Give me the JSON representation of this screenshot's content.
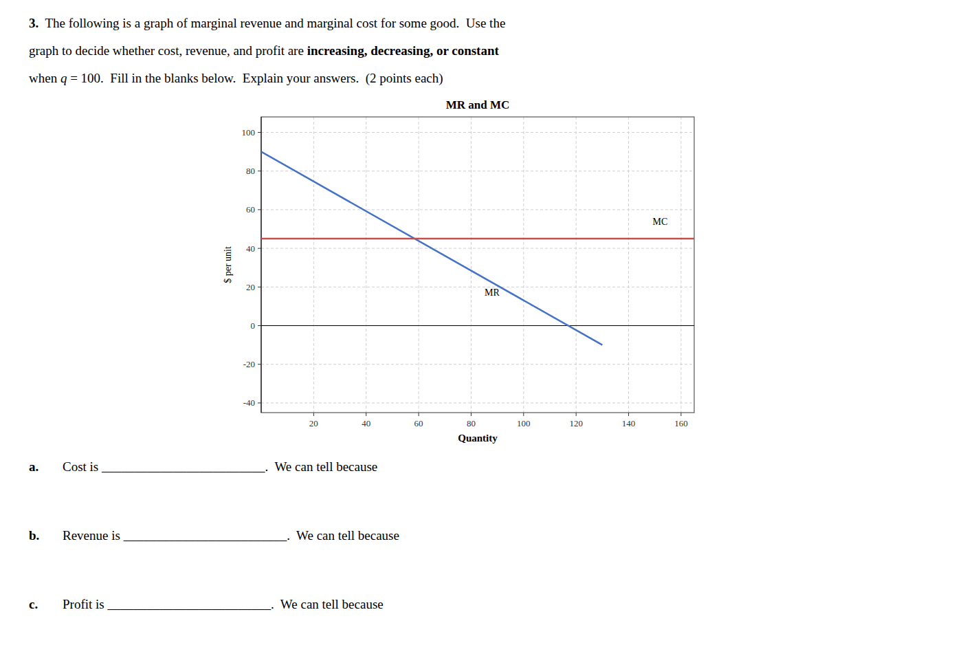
{
  "chart_data": {
    "type": "line",
    "title": "MR and MC",
    "xlabel": "Quantity",
    "ylabel": "$ per unit",
    "xlim": [
      0,
      165
    ],
    "ylim": [
      -45,
      108
    ],
    "xticks": [
      20,
      40,
      60,
      80,
      100,
      120,
      140,
      160
    ],
    "yticks": [
      -40,
      -20,
      0,
      20,
      40,
      60,
      80,
      100
    ],
    "grid": true,
    "series": [
      {
        "name": "MR",
        "color": "#4472C4",
        "x": [
          0,
          130
        ],
        "values": [
          90,
          -10
        ]
      },
      {
        "name": "MC",
        "color": "#C0504D",
        "x": [
          0,
          165
        ],
        "values": [
          45,
          45
        ]
      }
    ],
    "annotations": [
      {
        "text": "MR",
        "x": 88,
        "y": 20
      },
      {
        "text": "MC",
        "x": 152,
        "y": 51
      }
    ]
  },
  "background_color": "#FFFFFF",
  "header": [
    [
      {
        "text": "3.",
        "bold": true
      },
      {
        "text": "  The following is a graph of marginal revenue and marginal cost for some good.  Use the"
      }
    ],
    [
      {
        "text": "graph to decide whether cost, revenue, and profit are "
      },
      {
        "text": "increasing, decreasing, or constant",
        "bold": true
      }
    ],
    [
      {
        "text": "when "
      },
      {
        "text": "q",
        "italic": true
      },
      {
        "text": " = 100.  Fill in the blanks below.  Explain your answers.  (2 points each)"
      }
    ]
  ],
  "questions": [
    {
      "label": "a.",
      "text": "Cost is _________________________.",
      "text2": "  We can tell because"
    },
    {
      "label": "b.",
      "text": "Revenue is _________________________.",
      "text2": "  We can tell because"
    },
    {
      "label": "c.",
      "text": "Profit is _________________________.",
      "text2": "  We can tell because"
    }
  ]
}
